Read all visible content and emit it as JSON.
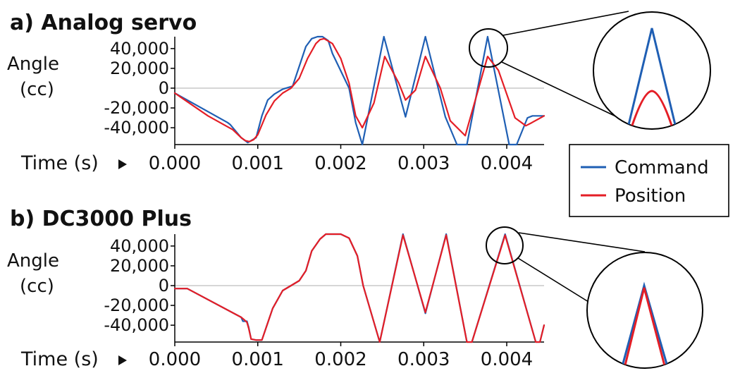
{
  "colors": {
    "command": "#1f5fb4",
    "position": "#e41e26",
    "zero_line": "#c8c8c8",
    "outline": "#000000"
  },
  "legend": {
    "placement": "right, between panels",
    "items": [
      {
        "label": "Command",
        "color": "#1f5fb4"
      },
      {
        "label": "Position",
        "color": "#e41e26"
      }
    ]
  },
  "chart_data": [
    {
      "type": "line",
      "panel_title": "a) Analog servo",
      "ylabel_line1": "Angle",
      "ylabel_line2": "(cc)",
      "xlabel": "Time (s)",
      "xlim": [
        0,
        0.00445
      ],
      "ylim": [
        -57000,
        52000
      ],
      "yticks": [
        40000,
        20000,
        0,
        -20000,
        -40000
      ],
      "ytick_labels": [
        "40,000",
        "20,000",
        "0",
        "-20,000",
        "-40,000"
      ],
      "xticks": [
        0,
        0.001,
        0.002,
        0.003,
        0.004
      ],
      "xtick_labels": [
        "0.000",
        "0.001",
        "0.002",
        "0.003",
        "0.004"
      ],
      "zero_line": true,
      "inset": "zoomed view of the peak near 0.0038 s",
      "series": [
        {
          "name": "Command",
          "color": "#1f5fb4",
          "x": [
            0.0,
            0.00064,
            0.00067,
            0.0008,
            0.00088,
            0.00098,
            0.00105,
            0.00112,
            0.0012,
            0.0013,
            0.00142,
            0.0015,
            0.00158,
            0.00165,
            0.00172,
            0.00178,
            0.00185,
            0.0019,
            0.0021,
            0.00218,
            0.00226,
            0.00252,
            0.00278,
            0.00302,
            0.00326,
            0.0034,
            0.00352,
            0.00377,
            0.00403,
            0.00412,
            0.00425,
            0.00431,
            0.00435,
            0.00445
          ],
          "y": [
            -5000,
            -35000,
            -37000,
            -50000,
            -55000,
            -50000,
            -28000,
            -12000,
            -6000,
            -1000,
            2000,
            22000,
            42000,
            50000,
            52000,
            52000,
            48000,
            35000,
            0,
            -35000,
            -57000,
            52000,
            -29000,
            52000,
            -29000,
            -57000,
            -57000,
            52000,
            -57000,
            -57000,
            -30000,
            -28000,
            -28000,
            -28000
          ]
        },
        {
          "name": "Position",
          "color": "#e41e26",
          "x": [
            0.0,
            0.0004,
            0.0007,
            0.0008,
            0.00085,
            0.0009,
            0.00095,
            0.001,
            0.0011,
            0.0012,
            0.0013,
            0.0014,
            0.0015,
            0.0016,
            0.0017,
            0.00175,
            0.0018,
            0.0019,
            0.002,
            0.0021,
            0.00218,
            0.00226,
            0.0024,
            0.00253,
            0.0027,
            0.00278,
            0.0029,
            0.00302,
            0.0032,
            0.00332,
            0.0035,
            0.00377,
            0.0039,
            0.0041,
            0.00423,
            0.0043,
            0.00445
          ],
          "y": [
            -5000,
            -28000,
            -42000,
            -50000,
            -53000,
            -54000,
            -52000,
            -47000,
            -27000,
            -13000,
            -5000,
            0,
            10000,
            30000,
            45000,
            49000,
            50000,
            45000,
            30000,
            5000,
            -28000,
            -40000,
            -15000,
            32000,
            5000,
            -12000,
            -2000,
            32000,
            0,
            -33000,
            -48000,
            32000,
            18000,
            -30000,
            -38000,
            -35000,
            -28000
          ]
        }
      ]
    },
    {
      "type": "line",
      "panel_title": "b) DC3000 Plus",
      "ylabel_line1": "Angle",
      "ylabel_line2": "(cc)",
      "xlabel": "Time (s)",
      "xlim": [
        0,
        0.00445
      ],
      "ylim": [
        -57000,
        52000
      ],
      "yticks": [
        40000,
        20000,
        0,
        -20000,
        -40000
      ],
      "ytick_labels": [
        "40,000",
        "20,000",
        "0",
        "-20,000",
        "-40,000"
      ],
      "xticks": [
        0,
        0.001,
        0.002,
        0.003,
        0.004
      ],
      "xtick_labels": [
        "0.000",
        "0.001",
        "0.002",
        "0.003",
        "0.004"
      ],
      "zero_line": true,
      "inset": "zoomed view of the peak near 0.004 s",
      "series": [
        {
          "name": "Command",
          "color": "#1f5fb4",
          "x": [
            0.0,
            0.00015,
            0.0008,
            0.00082,
            0.00087,
            0.00089,
            0.00092,
            0.00098,
            0.00105,
            0.00118,
            0.0013,
            0.0014,
            0.0015,
            0.00158,
            0.00165,
            0.00175,
            0.00182,
            0.00188,
            0.002,
            0.0021,
            0.0022,
            0.00227,
            0.00247,
            0.00275,
            0.00302,
            0.00327,
            0.00352,
            0.00358,
            0.00398,
            0.00435,
            0.0044,
            0.00445
          ],
          "y": [
            -3000,
            -3000,
            -32000,
            -36000,
            -36000,
            -42000,
            -54000,
            -55000,
            -55000,
            -23000,
            -5000,
            0,
            5000,
            15000,
            35000,
            47000,
            52000,
            52000,
            52000,
            48000,
            30000,
            0,
            -57000,
            52000,
            -28000,
            52000,
            -57000,
            -57000,
            52000,
            -57000,
            -57000,
            -40000
          ]
        },
        {
          "name": "Position",
          "color": "#e41e26",
          "x": [
            0.0,
            0.00015,
            0.0008,
            0.00083,
            0.00087,
            0.00089,
            0.00092,
            0.00098,
            0.00105,
            0.00118,
            0.0013,
            0.0014,
            0.0015,
            0.00158,
            0.00165,
            0.00175,
            0.00182,
            0.00188,
            0.002,
            0.0021,
            0.0022,
            0.00227,
            0.00247,
            0.00275,
            0.00302,
            0.00327,
            0.00352,
            0.00358,
            0.00398,
            0.00435,
            0.0044,
            0.00445
          ],
          "y": [
            -3000,
            -3000,
            -32000,
            -34000,
            -37000,
            -43000,
            -54000,
            -55000,
            -55000,
            -23000,
            -5000,
            0,
            5000,
            15000,
            35000,
            47000,
            52000,
            52000,
            52000,
            48000,
            30000,
            0,
            -57000,
            51000,
            -27000,
            51000,
            -57000,
            -57000,
            51000,
            -57000,
            -57000,
            -40000
          ]
        }
      ]
    }
  ]
}
